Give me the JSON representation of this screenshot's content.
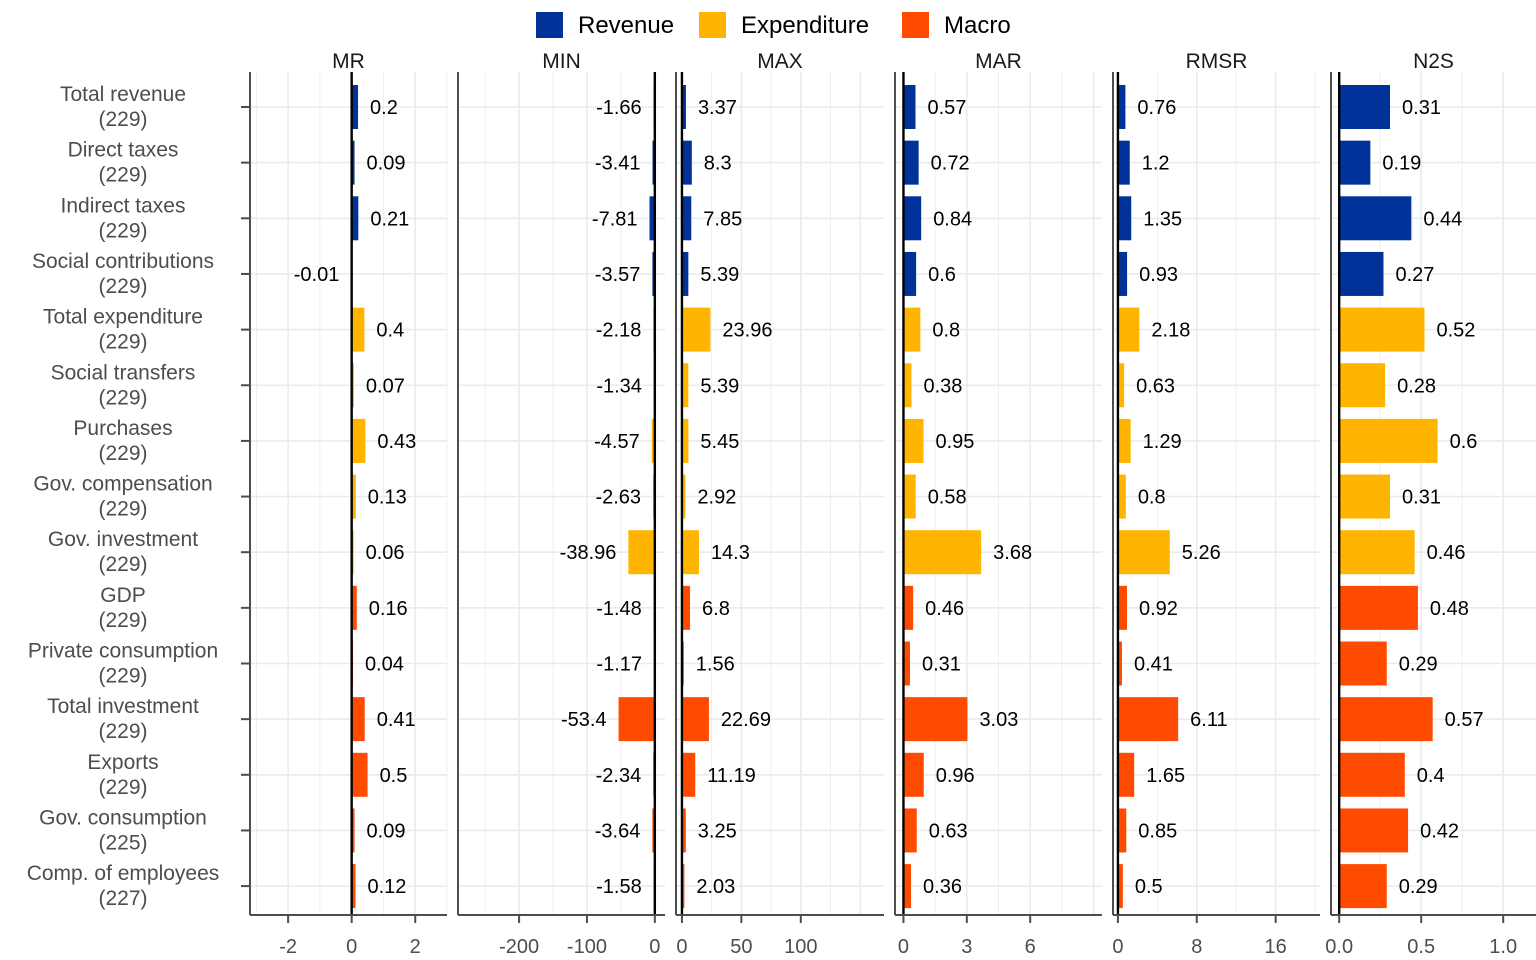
{
  "chart_data": {
    "type": "bar",
    "orientation": "horizontal",
    "legend": {
      "position": "top",
      "entries": [
        {
          "name": "Revenue",
          "color": "#003299"
        },
        {
          "name": "Expenditure",
          "color": "#FFB400"
        },
        {
          "name": "Macro",
          "color": "#FF4B00"
        }
      ]
    },
    "grid": true,
    "categories": [
      {
        "name": "Total revenue",
        "count": "(229)",
        "group": "Revenue"
      },
      {
        "name": "Direct taxes",
        "count": "(229)",
        "group": "Revenue"
      },
      {
        "name": "Indirect taxes",
        "count": "(229)",
        "group": "Revenue"
      },
      {
        "name": "Social contributions",
        "count": "(229)",
        "group": "Revenue"
      },
      {
        "name": "Total expenditure",
        "count": "(229)",
        "group": "Expenditure"
      },
      {
        "name": "Social transfers",
        "count": "(229)",
        "group": "Expenditure"
      },
      {
        "name": "Purchases",
        "count": "(229)",
        "group": "Expenditure"
      },
      {
        "name": "Gov. compensation",
        "count": "(229)",
        "group": "Expenditure"
      },
      {
        "name": "Gov. investment",
        "count": "(229)",
        "group": "Expenditure"
      },
      {
        "name": "GDP",
        "count": "(229)",
        "group": "Macro"
      },
      {
        "name": "Private consumption",
        "count": "(229)",
        "group": "Macro"
      },
      {
        "name": "Total investment",
        "count": "(229)",
        "group": "Macro"
      },
      {
        "name": "Exports",
        "count": "(229)",
        "group": "Macro"
      },
      {
        "name": "Gov. consumption",
        "count": "(225)",
        "group": "Macro"
      },
      {
        "name": "Comp. of employees",
        "count": "(227)",
        "group": "Macro"
      }
    ],
    "facets": [
      {
        "title": "MR",
        "xlim": [
          -3.2,
          3.0
        ],
        "ticks": [
          -2,
          0,
          2
        ],
        "tick_labels": [
          "-2",
          "0",
          "2"
        ],
        "values": [
          0.2,
          0.09,
          0.21,
          -0.01,
          0.4,
          0.07,
          0.43,
          0.13,
          0.06,
          0.16,
          0.04,
          0.41,
          0.5,
          0.09,
          0.12
        ],
        "labels": [
          "0.2",
          "0.09",
          "0.21",
          "-0.01",
          "0.4",
          "0.07",
          "0.43",
          "0.13",
          "0.06",
          "0.16",
          "0.04",
          "0.41",
          "0.5",
          "0.09",
          "0.12"
        ]
      },
      {
        "title": "MIN",
        "xlim": [
          -290,
          15
        ],
        "ticks": [
          -200,
          -100,
          0
        ],
        "tick_labels": [
          "-200",
          "-100",
          "0"
        ],
        "values": [
          -1.66,
          -3.41,
          -7.81,
          -3.57,
          -2.18,
          -1.34,
          -4.57,
          -2.63,
          -38.96,
          -1.48,
          -1.17,
          -53.4,
          -2.34,
          -3.64,
          -1.58
        ],
        "labels": [
          "-1.66",
          "-3.41",
          "-7.81",
          "-3.57",
          "-2.18",
          "-1.34",
          "-4.57",
          "-2.63",
          "-38.96",
          "-1.48",
          "-1.17",
          "-53.4",
          "-2.34",
          "-3.64",
          "-1.58"
        ]
      },
      {
        "title": "MAX",
        "xlim": [
          -5,
          170
        ],
        "ticks": [
          0,
          50,
          100
        ],
        "tick_labels": [
          "0",
          "50",
          "100"
        ],
        "values": [
          3.37,
          8.3,
          7.85,
          5.39,
          23.96,
          5.39,
          5.45,
          2.92,
          14.3,
          6.8,
          1.56,
          22.69,
          11.19,
          3.25,
          2.03
        ],
        "labels": [
          "3.37",
          "8.3",
          "7.85",
          "5.39",
          "23.96",
          "5.39",
          "5.45",
          "2.92",
          "14.3",
          "6.8",
          "1.56",
          "22.69",
          "11.19",
          "3.25",
          "2.03"
        ]
      },
      {
        "title": "MAR",
        "xlim": [
          -0.4,
          9.4
        ],
        "ticks": [
          0,
          3,
          6
        ],
        "tick_labels": [
          "0",
          "3",
          "6"
        ],
        "values": [
          0.57,
          0.72,
          0.84,
          0.6,
          0.8,
          0.38,
          0.95,
          0.58,
          3.68,
          0.46,
          0.31,
          3.03,
          0.96,
          0.63,
          0.36
        ],
        "labels": [
          "0.57",
          "0.72",
          "0.84",
          "0.6",
          "0.8",
          "0.38",
          "0.95",
          "0.58",
          "3.68",
          "0.46",
          "0.31",
          "3.03",
          "0.96",
          "0.63",
          "0.36"
        ]
      },
      {
        "title": "RMSR",
        "xlim": [
          -0.5,
          20.5
        ],
        "ticks": [
          0,
          8,
          16
        ],
        "tick_labels": [
          "0",
          "8",
          "16"
        ],
        "values": [
          0.76,
          1.2,
          1.35,
          0.93,
          2.18,
          0.63,
          1.29,
          0.8,
          5.26,
          0.92,
          0.41,
          6.11,
          1.65,
          0.85,
          0.5
        ],
        "labels": [
          "0.76",
          "1.2",
          "1.35",
          "0.93",
          "2.18",
          "0.63",
          "1.29",
          "0.8",
          "5.26",
          "0.92",
          "0.41",
          "6.11",
          "1.65",
          "0.85",
          "0.5"
        ]
      },
      {
        "title": "N2S",
        "xlim": [
          -0.05,
          1.2
        ],
        "ticks": [
          0,
          0.5,
          1
        ],
        "tick_labels": [
          "0.0",
          "0.5",
          "1.0"
        ],
        "values": [
          0.31,
          0.19,
          0.44,
          0.27,
          0.52,
          0.28,
          0.6,
          0.31,
          0.46,
          0.48,
          0.29,
          0.57,
          0.4,
          0.42,
          0.29
        ],
        "labels": [
          "0.31",
          "0.19",
          "0.44",
          "0.27",
          "0.52",
          "0.28",
          "0.6",
          "0.31",
          "0.46",
          "0.48",
          "0.29",
          "0.57",
          "0.4",
          "0.42",
          "0.29"
        ]
      }
    ]
  }
}
